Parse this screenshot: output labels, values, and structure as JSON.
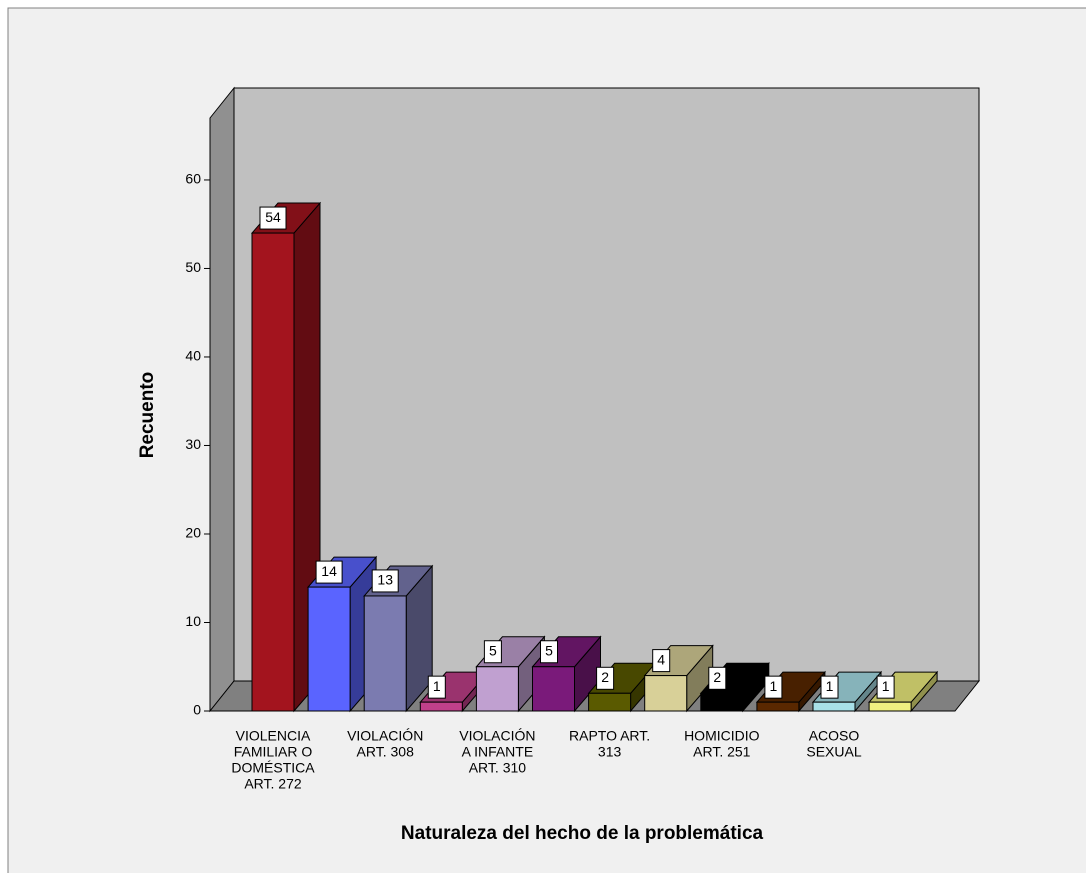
{
  "chart_data": {
    "type": "bar3d",
    "xlabel": "Naturaleza del hecho de la problemática",
    "ylabel": "Recuento",
    "categories": [
      [
        "VIOLENCIA",
        "FAMILIAR O",
        "DOMÉSTICA",
        "ART. 272"
      ],
      null,
      [
        "VIOLACIÓN",
        "ART. 308"
      ],
      null,
      [
        "VIOLACIÓN",
        "A INFANTE",
        "ART. 310"
      ],
      null,
      [
        "RAPTO ART.",
        "313"
      ],
      null,
      [
        "HOMICIDIO",
        "ART. 251"
      ],
      null,
      [
        "ACOSO",
        "SEXUAL"
      ],
      null
    ],
    "values": [
      54,
      14,
      13,
      1,
      5,
      5,
      2,
      4,
      2,
      1,
      1,
      1
    ],
    "colors": [
      "#a3141e",
      "#5a64ff",
      "#7b7bb0",
      "#c0408a",
      "#c0a0d0",
      "#7a1a7a",
      "#5a5a00",
      "#d8d098",
      "#000000",
      "#5a2800",
      "#a8e0e8",
      "#f0f080"
    ],
    "ylim": [
      0,
      67
    ],
    "yticks": [
      0,
      10,
      20,
      30,
      40,
      50,
      60
    ]
  }
}
